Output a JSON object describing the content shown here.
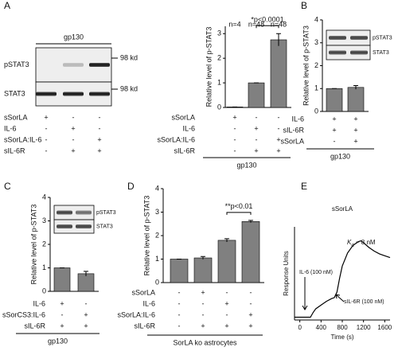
{
  "panel_labels": [
    "A",
    "B",
    "C",
    "D",
    "E"
  ],
  "blots": [
    {
      "title": "gp130",
      "bands": [
        "pSTAT3",
        "STAT3"
      ],
      "markers": [
        "98 kd",
        "98 kd"
      ],
      "conditions": [
        {
          "label": "sSorLA",
          "signs": [
            "+",
            "-",
            "-"
          ]
        },
        {
          "label": "IL-6",
          "signs": [
            "-",
            "+",
            "-"
          ]
        },
        {
          "label": "sSorLA:IL-6",
          "signs": [
            "-",
            "-",
            "+"
          ]
        },
        {
          "label": "sIL-6R",
          "signs": [
            "-",
            "+",
            "+"
          ]
        }
      ]
    },
    {
      "bands": [
        "pSTAT3",
        "STAT3"
      ]
    },
    {
      "bands": [
        "pSTAT3",
        "STAT3"
      ]
    }
  ],
  "chart_data": [
    {
      "type": "bar",
      "ylabel": "Relative level of p-STAT3",
      "categories": [
        null,
        null,
        null
      ],
      "values": [
        0.02,
        1,
        2.75
      ],
      "errors": [
        0,
        0,
        0.25
      ],
      "color": "#808080",
      "ylim": [
        0,
        3.3
      ],
      "yticks": [
        0,
        1,
        2,
        3
      ],
      "n_labels": [
        "n=4",
        "n=48",
        "n=48"
      ],
      "significance": "*p<0.0001",
      "conditions": [
        {
          "label": "sSorLA",
          "signs": [
            "+",
            "-",
            "-"
          ]
        },
        {
          "label": "IL-6",
          "signs": [
            "-",
            "+",
            "-"
          ]
        },
        {
          "label": "sSorLA:IL-6",
          "signs": [
            "-",
            "-",
            "+"
          ]
        },
        {
          "label": "sIL-6R",
          "signs": [
            "-",
            "+",
            "+"
          ]
        }
      ],
      "footer": "gp130"
    },
    {
      "type": "bar",
      "ylabel": "Relative level of p-STAT3",
      "categories": [
        null,
        null
      ],
      "values": [
        1,
        1.05
      ],
      "errors": [
        0,
        0.08
      ],
      "color": "#808080",
      "ylim": [
        0,
        4
      ],
      "yticks": [
        0,
        1,
        2,
        3,
        4
      ],
      "conditions": [
        {
          "label": "IL-6",
          "signs": [
            "+",
            "+"
          ]
        },
        {
          "label": "sIL-6R",
          "signs": [
            "+",
            "+"
          ]
        },
        {
          "label": "sSorLA",
          "signs": [
            "-",
            "+"
          ]
        }
      ],
      "footer": "gp130"
    },
    {
      "type": "bar",
      "ylabel": "Relative level of p-STAT3",
      "categories": [
        null,
        null
      ],
      "values": [
        1,
        0.75
      ],
      "errors": [
        0,
        0.1
      ],
      "color": "#808080",
      "ylim": [
        0,
        4
      ],
      "yticks": [
        0,
        1,
        2,
        3,
        4
      ],
      "conditions": [
        {
          "label": "IL-6",
          "signs": [
            "+",
            "-"
          ]
        },
        {
          "label": "sSorCS3:IL-6",
          "signs": [
            "-",
            "+"
          ]
        },
        {
          "label": "sIL-6R",
          "signs": [
            "+",
            "+"
          ]
        }
      ],
      "footer": "gp130"
    },
    {
      "type": "bar",
      "ylabel": "Relative level of p-STAT3",
      "categories": [
        null,
        null,
        null,
        null
      ],
      "values": [
        1,
        1.05,
        1.8,
        2.6
      ],
      "errors": [
        0,
        0.06,
        0.07,
        0.05
      ],
      "color": "#808080",
      "ylim": [
        0,
        4
      ],
      "yticks": [
        0,
        1,
        2,
        3,
        4
      ],
      "significance": "**p<0.01",
      "conditions": [
        {
          "label": "sSorLA",
          "signs": [
            "-",
            "+",
            "-",
            "-"
          ]
        },
        {
          "label": "IL-6",
          "signs": [
            "-",
            "-",
            "+",
            "-"
          ]
        },
        {
          "label": "sSorLA:IL-6",
          "signs": [
            "-",
            "-",
            "-",
            "+"
          ]
        },
        {
          "label": "sIL-6R",
          "signs": [
            "-",
            "+",
            "+",
            "+"
          ]
        }
      ],
      "footer": "SorLA ko astrocytes"
    },
    {
      "type": "line",
      "title": "sSorLA",
      "xlabel": "Time (s)",
      "ylabel": "Response Units",
      "color": "#000000",
      "x": [
        -100,
        0,
        100,
        200,
        250,
        300,
        400,
        500,
        600,
        650,
        700,
        750,
        800,
        900,
        1000,
        1100,
        1150,
        1200,
        1300,
        1400,
        1500,
        1600,
        1700
      ],
      "values": [
        3,
        3,
        3,
        3,
        8,
        12,
        16,
        20,
        23,
        24,
        30,
        45,
        58,
        72,
        80,
        84,
        85,
        83,
        78,
        74,
        71,
        69,
        67
      ],
      "xlim": [
        -100,
        1700
      ],
      "xticks": [
        0,
        400,
        800,
        1200,
        1600
      ],
      "ylim": [
        0,
        100
      ],
      "annotations": [
        "IL-6 (100 nM)",
        "sIL-6R (100 nM)"
      ],
      "kd": {
        "symbol": "K",
        "subscript": "d",
        "text": " ~ 8 nM"
      }
    }
  ]
}
